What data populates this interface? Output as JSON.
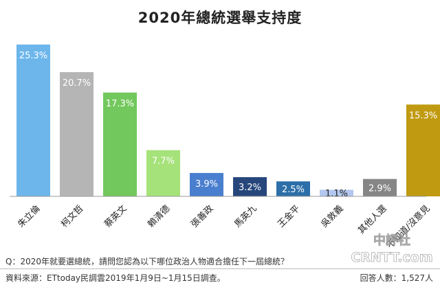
{
  "chart_data": {
    "type": "bar",
    "title": "2020年總統選舉支持度",
    "categories": [
      "朱立倫",
      "柯文哲",
      "蔡英文",
      "賴清德",
      "張善政",
      "馬英九",
      "王金平",
      "吳敦義",
      "其他人選",
      "不知道/沒意見"
    ],
    "values": [
      25.3,
      20.7,
      17.3,
      7.7,
      3.9,
      3.2,
      2.5,
      1.1,
      2.9,
      15.3
    ],
    "value_labels": [
      "25.3%",
      "20.7%",
      "17.3%",
      "7.7%",
      "3.9%",
      "3.2%",
      "2.5%",
      "1.1%",
      "2.9%",
      "15.3%"
    ],
    "colors": [
      "#6cb6ec",
      "#b5b5b5",
      "#72c85c",
      "#a6e27a",
      "#4a7fcf",
      "#27477c",
      "#2d6fa8",
      "#b3c8ef",
      "#868686",
      "#c09a10"
    ],
    "ylim": [
      0,
      27
    ],
    "xlabel": "",
    "ylabel": "",
    "grid": false,
    "legend": "none"
  },
  "footer": {
    "question": "Q：2020年就要選總統，請問您認為以下哪位政治人物適合擔任下一屆總統？",
    "source": "資料來源：ETtoday民調雲2019年1月9日~1月15日調查。",
    "respondents": "回答人數：1,527人"
  },
  "watermark": {
    "line1": "中評社",
    "line2": "CRNTT.com"
  }
}
